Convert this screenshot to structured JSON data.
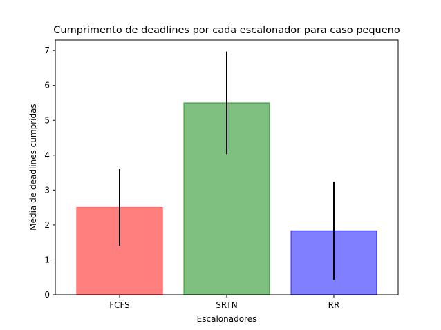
{
  "chart_data": {
    "type": "bar",
    "title": "Cumprimento de deadlines por cada escalonador para caso pequeno",
    "xlabel": "Escalonadores",
    "ylabel": "Média de deadlines cumpridas",
    "categories": [
      "FCFS",
      "SRTN",
      "RR"
    ],
    "values": [
      2.5,
      5.5,
      1.83
    ],
    "errors": [
      1.1,
      1.47,
      1.4
    ],
    "colors": [
      "#ff0000",
      "#008000",
      "#0000ff"
    ],
    "bar_alpha": 0.5,
    "error_color": "#000000",
    "ylim": [
      0,
      7.3
    ],
    "yticks": [
      0,
      1,
      2,
      3,
      4,
      5,
      6,
      7
    ],
    "grid": false
  }
}
